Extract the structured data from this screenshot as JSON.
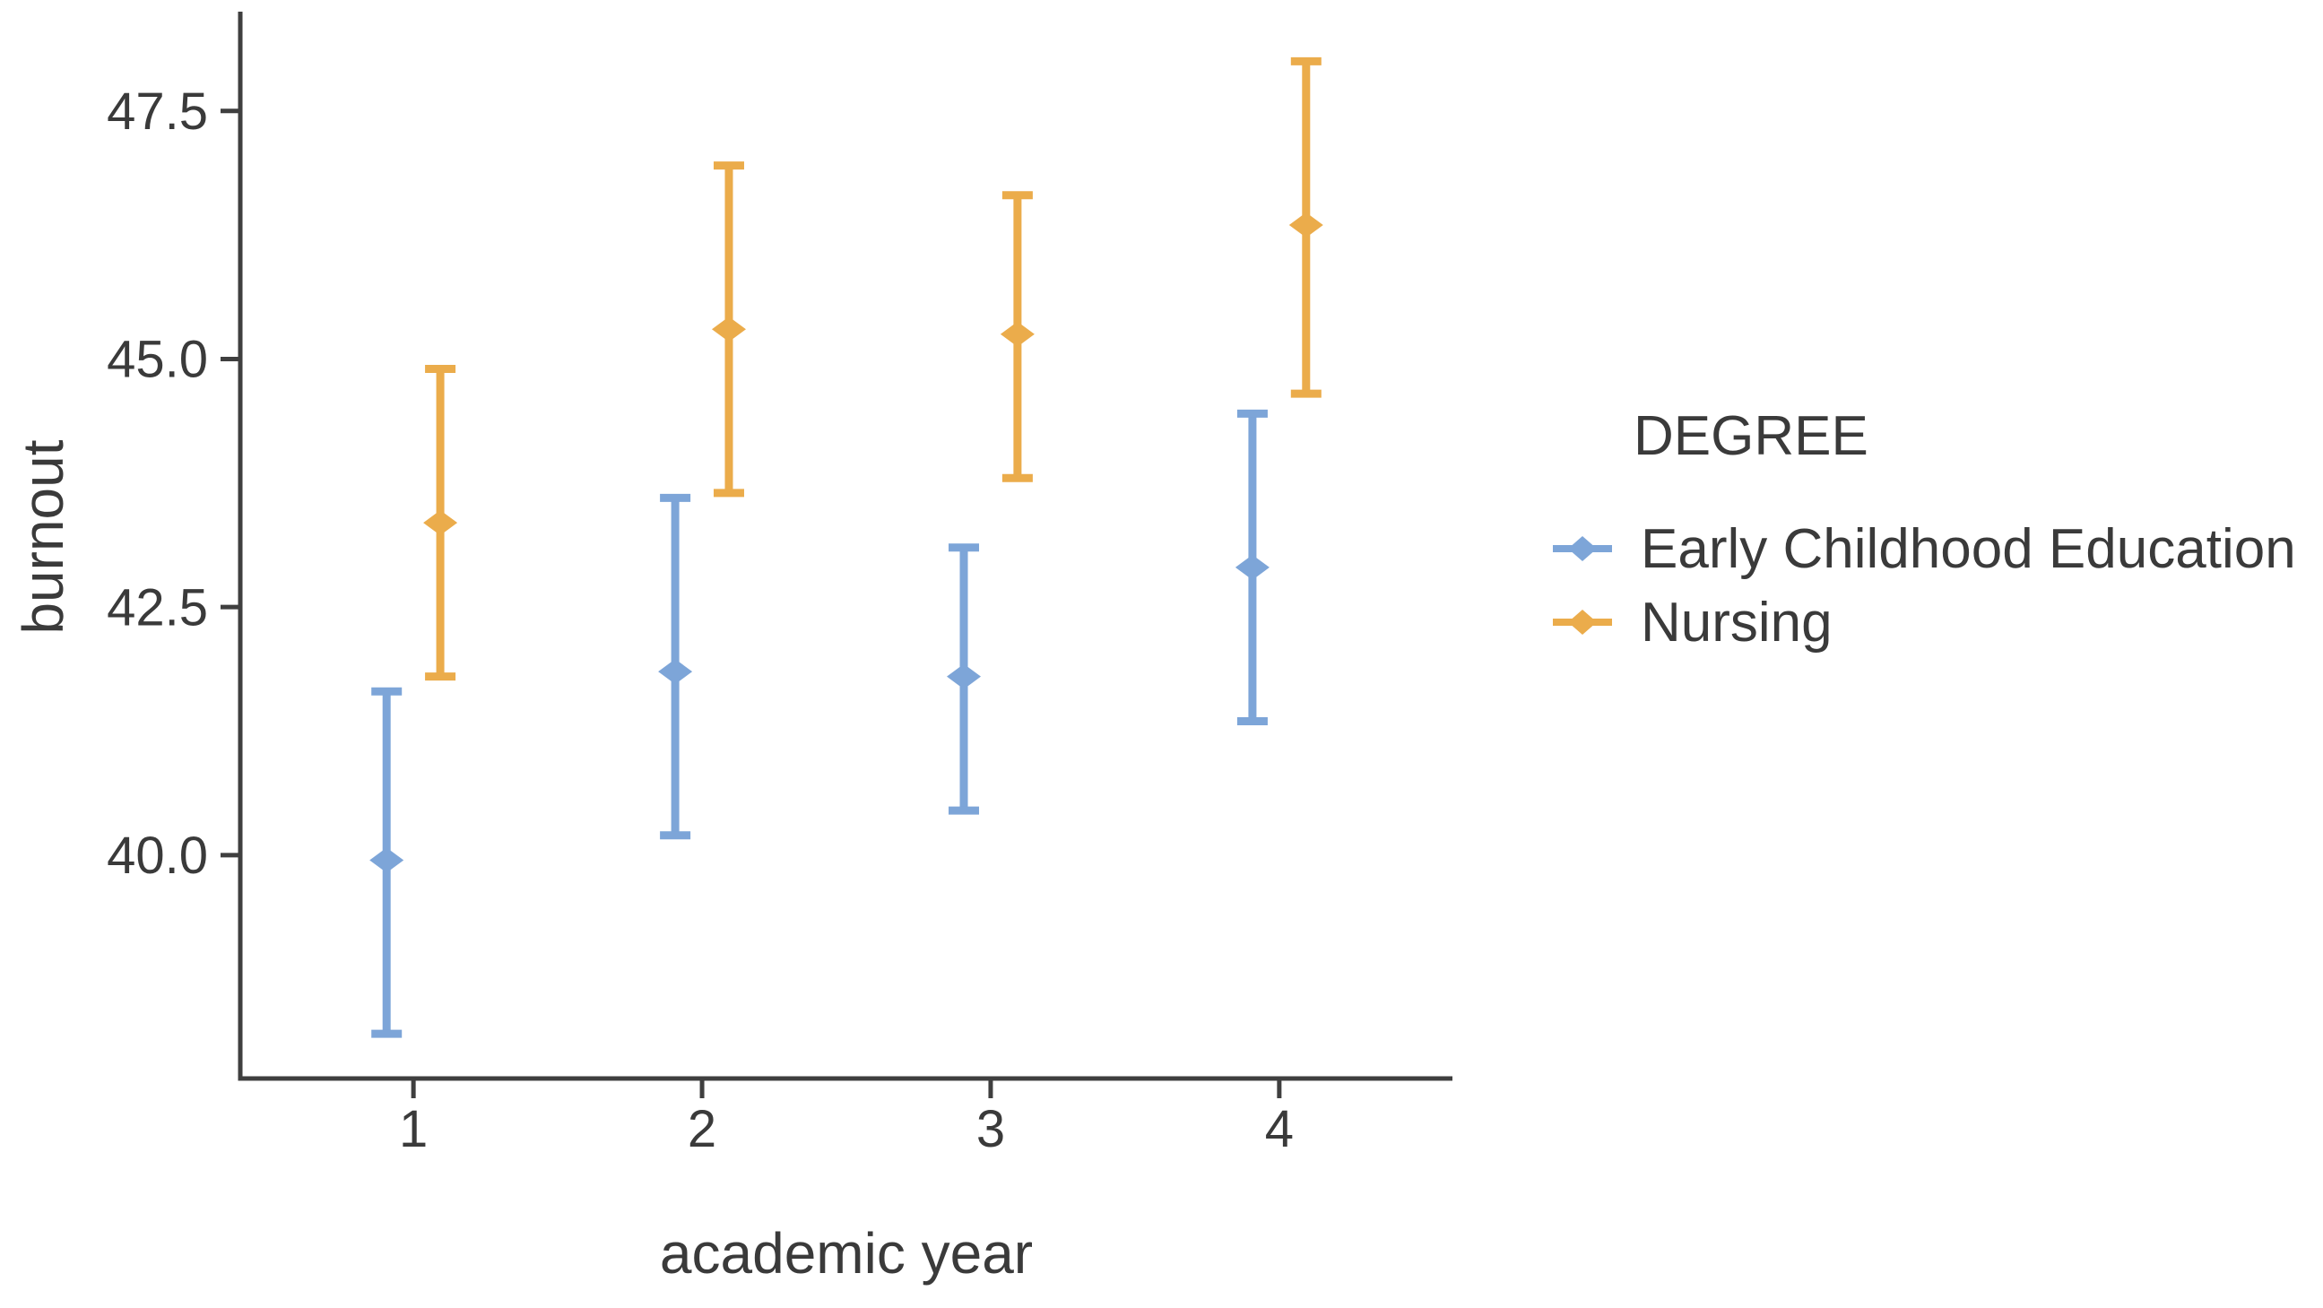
{
  "figure": {
    "background": "#ffffff",
    "axis_color": "#3f3f3f",
    "text_color": "#3a3a3a"
  },
  "chart_data": {
    "type": "scatter",
    "subtype": "point-range-errorbar",
    "title": "",
    "xlabel": "academic year",
    "ylabel": "burnout",
    "xlim": [
      0.4,
      4.6
    ],
    "ylim": [
      37.75,
      48.5
    ],
    "grid": false,
    "xticks": [
      {
        "value": 1,
        "label": "1"
      },
      {
        "value": 2,
        "label": "2"
      },
      {
        "value": 3,
        "label": "3"
      },
      {
        "value": 4,
        "label": "4"
      }
    ],
    "yticks": [
      {
        "value": 40.0,
        "label": "40.0"
      },
      {
        "value": 42.5,
        "label": "42.5"
      },
      {
        "value": 45.0,
        "label": "45.0"
      },
      {
        "value": 47.5,
        "label": "47.5"
      }
    ],
    "dodge": 0.093,
    "legend": {
      "title": "DEGREE",
      "position": "right"
    },
    "series": [
      {
        "name": "Early Childhood Education",
        "color": "#7DA5D8",
        "marker": "diamond",
        "points": [
          {
            "x": 1,
            "y": 39.95,
            "lo": 38.2,
            "hi": 41.65
          },
          {
            "x": 2,
            "y": 41.85,
            "lo": 40.2,
            "hi": 43.6
          },
          {
            "x": 3,
            "y": 41.8,
            "lo": 40.45,
            "hi": 43.1
          },
          {
            "x": 4,
            "y": 42.9,
            "lo": 41.35,
            "hi": 44.45
          }
        ]
      },
      {
        "name": "Nursing",
        "color": "#EBAC4B",
        "marker": "diamond",
        "points": [
          {
            "x": 1,
            "y": 43.35,
            "lo": 41.8,
            "hi": 44.9
          },
          {
            "x": 2,
            "y": 45.3,
            "lo": 43.65,
            "hi": 46.95
          },
          {
            "x": 3,
            "y": 45.25,
            "lo": 43.8,
            "hi": 46.65
          },
          {
            "x": 4,
            "y": 46.35,
            "lo": 44.65,
            "hi": 48.0
          }
        ]
      }
    ]
  }
}
